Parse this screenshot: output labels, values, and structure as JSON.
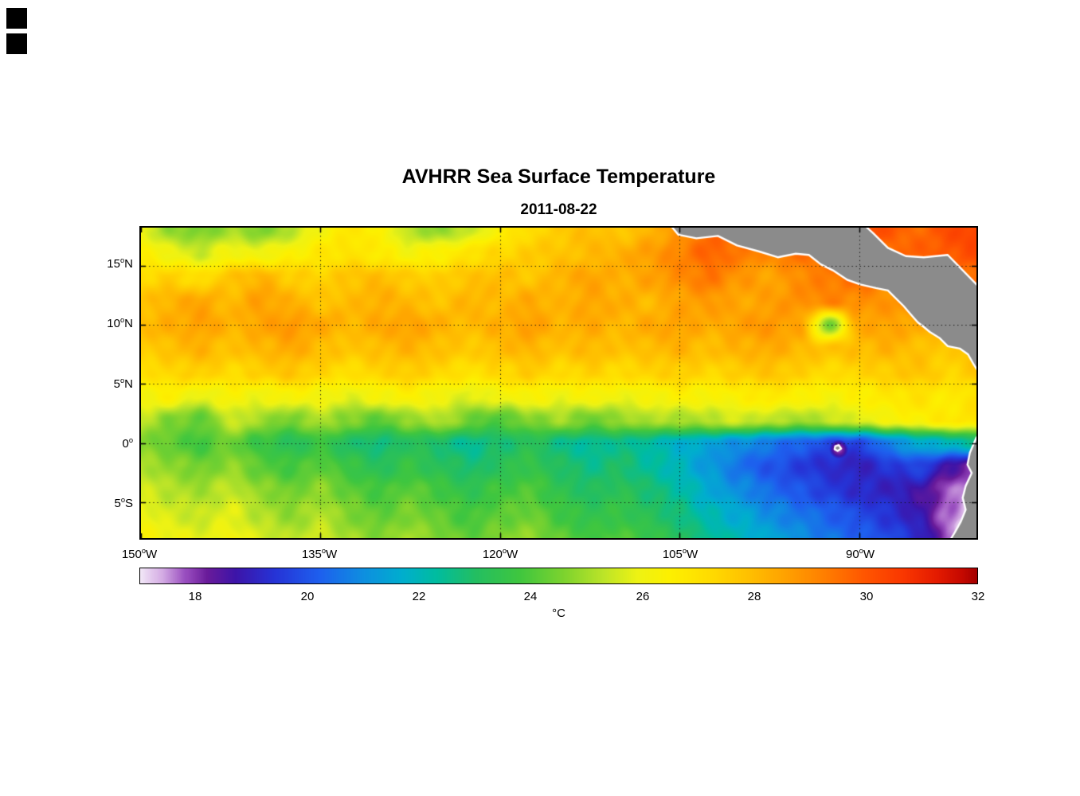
{
  "figure": {
    "title": "AVHRR Sea Surface Temperature",
    "subtitle": "2011-08-22"
  },
  "axes": {
    "lon_ticks": [
      {
        "value": "150",
        "hemi": "W",
        "lon": -150
      },
      {
        "value": "135",
        "hemi": "W",
        "lon": -135
      },
      {
        "value": "120",
        "hemi": "W",
        "lon": -120
      },
      {
        "value": "105",
        "hemi": "W",
        "lon": -105
      },
      {
        "value": "90",
        "hemi": "W",
        "lon": -90
      }
    ],
    "lat_ticks": [
      {
        "value": "15",
        "hemi": "N",
        "lat": 15
      },
      {
        "value": "10",
        "hemi": "N",
        "lat": 10
      },
      {
        "value": "5",
        "hemi": "N",
        "lat": 5
      },
      {
        "value": "0",
        "hemi": "",
        "lat": 0
      },
      {
        "value": "5",
        "hemi": "S",
        "lat": -5
      }
    ]
  },
  "colorbar": {
    "unit": "°C",
    "min": 17,
    "max": 32,
    "ticks": [
      18,
      20,
      22,
      24,
      26,
      28,
      30,
      32
    ]
  },
  "chart_data": {
    "type": "heatmap",
    "title": "AVHRR Sea Surface Temperature",
    "date": "2011-08-22",
    "units": "°C",
    "lon_range": [
      -150,
      -80.2
    ],
    "lat_range": [
      -8,
      18.2
    ],
    "grid_lons": [
      -135,
      -120,
      -105,
      -90
    ],
    "grid_lats": [
      15,
      10,
      5,
      0,
      -5
    ],
    "lons": [
      -150,
      -147.5,
      -145,
      -142.5,
      -140,
      -137.5,
      -135,
      -132.5,
      -130,
      -127.5,
      -125,
      -122.5,
      -120,
      -117.5,
      -115,
      -112.5,
      -110,
      -107.5,
      -105,
      -102.5,
      -100,
      -97.5,
      -95,
      -92.5,
      -90,
      -87.5,
      -85,
      -82.5,
      -80
    ],
    "lats": [
      18,
      16,
      14,
      12,
      10,
      8,
      6,
      4,
      2,
      0,
      -2,
      -4,
      -6,
      -8
    ],
    "sst_c": [
      [
        26.0,
        24.8,
        24.5,
        25.0,
        24.6,
        25.2,
        26.2,
        26.8,
        26.5,
        25.2,
        24.8,
        25.4,
        26.5,
        27.2,
        27.6,
        28.0,
        27.6,
        28.2,
        28.8,
        29.5,
        30.0,
        29.6,
        30.2,
        29.8,
        30.4,
        30.0,
        29.6,
        30.2,
        30.5
      ],
      [
        26.5,
        26.0,
        25.5,
        26.2,
        26.0,
        26.4,
        26.8,
        27.0,
        26.6,
        26.2,
        26.5,
        27.0,
        27.3,
        27.6,
        27.8,
        28.0,
        28.3,
        28.6,
        29.2,
        29.8,
        29.4,
        29.0,
        29.5,
        29.8,
        30.0,
        29.5,
        29.8,
        30.0,
        30.2
      ],
      [
        27.2,
        27.5,
        27.0,
        27.8,
        28.2,
        27.6,
        27.4,
        27.8,
        28.0,
        27.6,
        27.5,
        27.8,
        28.0,
        27.7,
        28.2,
        28.5,
        28.2,
        28.6,
        29.0,
        29.4,
        28.8,
        28.5,
        29.0,
        29.3,
        29.6,
        29.2,
        29.0,
        29.4,
        29.6
      ],
      [
        27.8,
        28.2,
        28.5,
        28.0,
        28.6,
        28.2,
        27.8,
        28.0,
        28.3,
        28.0,
        27.8,
        28.2,
        28.0,
        28.4,
        28.1,
        28.5,
        28.3,
        28.0,
        28.5,
        28.8,
        28.4,
        28.6,
        28.9,
        29.2,
        29.0,
        28.8,
        29.2,
        29.0,
        29.3
      ],
      [
        28.0,
        28.3,
        28.6,
        28.2,
        28.5,
        28.8,
        28.4,
        28.1,
        28.4,
        28.6,
        28.2,
        28.0,
        28.3,
        28.6,
        28.2,
        28.4,
        28.1,
        28.4,
        28.6,
        28.3,
        28.6,
        28.8,
        28.5,
        24.5,
        28.4,
        28.6,
        28.3,
        28.0,
        28.2
      ],
      [
        27.6,
        27.9,
        28.2,
        27.8,
        28.1,
        28.4,
        28.0,
        27.7,
        28.0,
        28.2,
        27.9,
        27.6,
        28.0,
        28.2,
        27.8,
        28.1,
        27.8,
        28.0,
        28.2,
        27.9,
        28.2,
        28.4,
        28.1,
        27.8,
        28.0,
        28.2,
        27.9,
        27.6,
        27.9
      ],
      [
        27.0,
        27.3,
        27.6,
        27.2,
        27.5,
        27.8,
        27.4,
        27.1,
        27.4,
        27.6,
        27.3,
        27.0,
        27.3,
        27.6,
        27.2,
        27.5,
        27.2,
        27.4,
        27.6,
        27.3,
        27.6,
        27.8,
        27.5,
        27.2,
        27.4,
        27.6,
        27.8,
        27.4,
        27.7
      ],
      [
        26.2,
        26.5,
        25.8,
        26.3,
        26.0,
        26.4,
        26.1,
        25.8,
        26.2,
        26.5,
        26.0,
        25.7,
        26.1,
        26.4,
        26.0,
        26.3,
        26.0,
        26.2,
        26.5,
        26.2,
        26.5,
        26.8,
        26.5,
        26.2,
        26.5,
        26.8,
        27.0,
        26.6,
        27.0
      ],
      [
        25.4,
        24.6,
        24.2,
        25.5,
        25.0,
        24.4,
        25.2,
        24.6,
        24.2,
        24.8,
        25.3,
        24.4,
        24.0,
        24.6,
        25.0,
        24.4,
        24.8,
        25.2,
        25.0,
        25.3,
        25.6,
        25.3,
        25.0,
        25.4,
        25.8,
        26.2,
        26.5,
        26.8,
        27.0
      ],
      [
        24.6,
        24.2,
        23.8,
        24.4,
        23.6,
        23.2,
        23.6,
        23.0,
        22.6,
        23.2,
        22.8,
        22.4,
        22.8,
        23.2,
        22.6,
        22.3,
        22.6,
        22.2,
        21.8,
        21.4,
        21.0,
        20.6,
        20.2,
        19.8,
        19.6,
        20.8,
        21.5,
        22.0,
        22.4
      ],
      [
        25.2,
        24.8,
        24.4,
        24.8,
        24.2,
        23.8,
        24.2,
        23.6,
        23.2,
        23.6,
        23.2,
        22.8,
        23.2,
        23.6,
        23.0,
        22.6,
        22.9,
        22.4,
        21.9,
        21.2,
        20.5,
        20.0,
        19.6,
        19.2,
        19.0,
        19.4,
        19.8,
        18.5,
        18.0
      ],
      [
        25.6,
        25.2,
        25.0,
        25.4,
        24.8,
        24.4,
        24.8,
        24.2,
        23.8,
        24.2,
        23.8,
        23.4,
        23.8,
        24.0,
        23.4,
        23.0,
        23.3,
        22.8,
        22.3,
        21.6,
        21.0,
        20.4,
        20.0,
        19.6,
        19.2,
        19.0,
        18.6,
        17.8,
        17.2
      ],
      [
        26.0,
        25.6,
        25.4,
        25.8,
        25.2,
        24.8,
        25.2,
        24.6,
        24.2,
        24.6,
        24.2,
        23.8,
        24.2,
        24.4,
        23.8,
        23.4,
        23.6,
        23.2,
        22.7,
        22.0,
        21.6,
        21.0,
        20.6,
        20.2,
        19.8,
        19.4,
        18.8,
        17.6,
        17.0
      ],
      [
        26.3,
        26.0,
        25.8,
        26.1,
        25.6,
        25.2,
        25.6,
        25.0,
        24.6,
        25.0,
        24.6,
        24.2,
        24.6,
        24.8,
        24.2,
        23.8,
        24.0,
        23.6,
        23.1,
        22.5,
        22.0,
        21.5,
        21.0,
        20.6,
        20.2,
        19.8,
        19.2,
        17.8,
        17.0
      ]
    ],
    "cold_anomalies": [
      {
        "lon": -91.7,
        "lat": -0.5,
        "temp": 17.8,
        "radius_deg": 0.8
      },
      {
        "lon": -81.0,
        "lat": -7.2,
        "temp": 16.9,
        "radius_deg": 1.1
      }
    ],
    "colormap_stops": [
      [
        17.0,
        "#F2E7F7"
      ],
      [
        17.4,
        "#D3A9E3"
      ],
      [
        17.8,
        "#9A4FC0"
      ],
      [
        18.2,
        "#6A1B9A"
      ],
      [
        18.7,
        "#3D14A8"
      ],
      [
        19.4,
        "#2633D6"
      ],
      [
        20.2,
        "#1E5FEE"
      ],
      [
        21.0,
        "#0E8FE0"
      ],
      [
        21.7,
        "#00AECE"
      ],
      [
        22.3,
        "#00BCA0"
      ],
      [
        23.0,
        "#23BE62"
      ],
      [
        23.8,
        "#3FC63F"
      ],
      [
        24.6,
        "#7ED32E"
      ],
      [
        25.3,
        "#BCE428"
      ],
      [
        25.9,
        "#EDF214"
      ],
      [
        26.5,
        "#FDF000"
      ],
      [
        27.2,
        "#FFDC00"
      ],
      [
        27.9,
        "#FFC000"
      ],
      [
        28.6,
        "#FFA000"
      ],
      [
        29.3,
        "#FF7D00"
      ],
      [
        30.0,
        "#FF5500"
      ],
      [
        30.7,
        "#F93600"
      ],
      [
        31.3,
        "#E31A00"
      ],
      [
        31.7,
        "#C80A00"
      ],
      [
        32.0,
        "#A50000"
      ]
    ],
    "land_color": "#8B8B8B",
    "coast_color": "#FFFFFF",
    "land_polygons": [
      [
        [
          -105.8,
          18.45
        ],
        [
          -105.1,
          17.6
        ],
        [
          -103.6,
          17.3
        ],
        [
          -101.8,
          17.5
        ],
        [
          -100.2,
          16.7
        ],
        [
          -98.4,
          16.2
        ],
        [
          -96.8,
          15.7
        ],
        [
          -95.3,
          16.0
        ],
        [
          -94.2,
          15.9
        ],
        [
          -93.2,
          15.1
        ],
        [
          -92.2,
          14.6
        ],
        [
          -91.0,
          13.8
        ],
        [
          -89.9,
          13.4
        ],
        [
          -88.6,
          13.1
        ],
        [
          -87.6,
          12.9
        ],
        [
          -87.0,
          12.3
        ],
        [
          -86.3,
          11.6
        ],
        [
          -85.7,
          10.9
        ],
        [
          -85.1,
          10.2
        ],
        [
          -84.7,
          9.9
        ],
        [
          -84.1,
          9.4
        ],
        [
          -83.3,
          8.9
        ],
        [
          -82.6,
          8.2
        ],
        [
          -81.6,
          8.0
        ],
        [
          -80.9,
          7.5
        ],
        [
          -80.4,
          6.6
        ],
        [
          -80.0,
          6.0
        ],
        [
          -80.0,
          13.2
        ],
        [
          -82.6,
          15.9
        ],
        [
          -84.6,
          15.7
        ],
        [
          -86.1,
          15.8
        ],
        [
          -87.6,
          16.5
        ],
        [
          -88.8,
          17.7
        ],
        [
          -89.6,
          18.45
        ]
      ],
      [
        [
          -79.8,
          0.6
        ],
        [
          -80.2,
          0.5
        ],
        [
          -80.75,
          -0.8
        ],
        [
          -80.95,
          -1.8
        ],
        [
          -80.6,
          -2.5
        ],
        [
          -81.1,
          -3.6
        ],
        [
          -81.35,
          -4.6
        ],
        [
          -81.1,
          -5.6
        ],
        [
          -81.5,
          -6.6
        ],
        [
          -82.0,
          -7.5
        ],
        [
          -82.6,
          -8.5
        ],
        [
          -79.8,
          -8.5
        ]
      ],
      [
        [
          -92.0,
          -0.25
        ],
        [
          -91.7,
          -0.15
        ],
        [
          -91.5,
          -0.45
        ],
        [
          -91.8,
          -0.65
        ],
        [
          -92.05,
          -0.5
        ]
      ]
    ]
  }
}
